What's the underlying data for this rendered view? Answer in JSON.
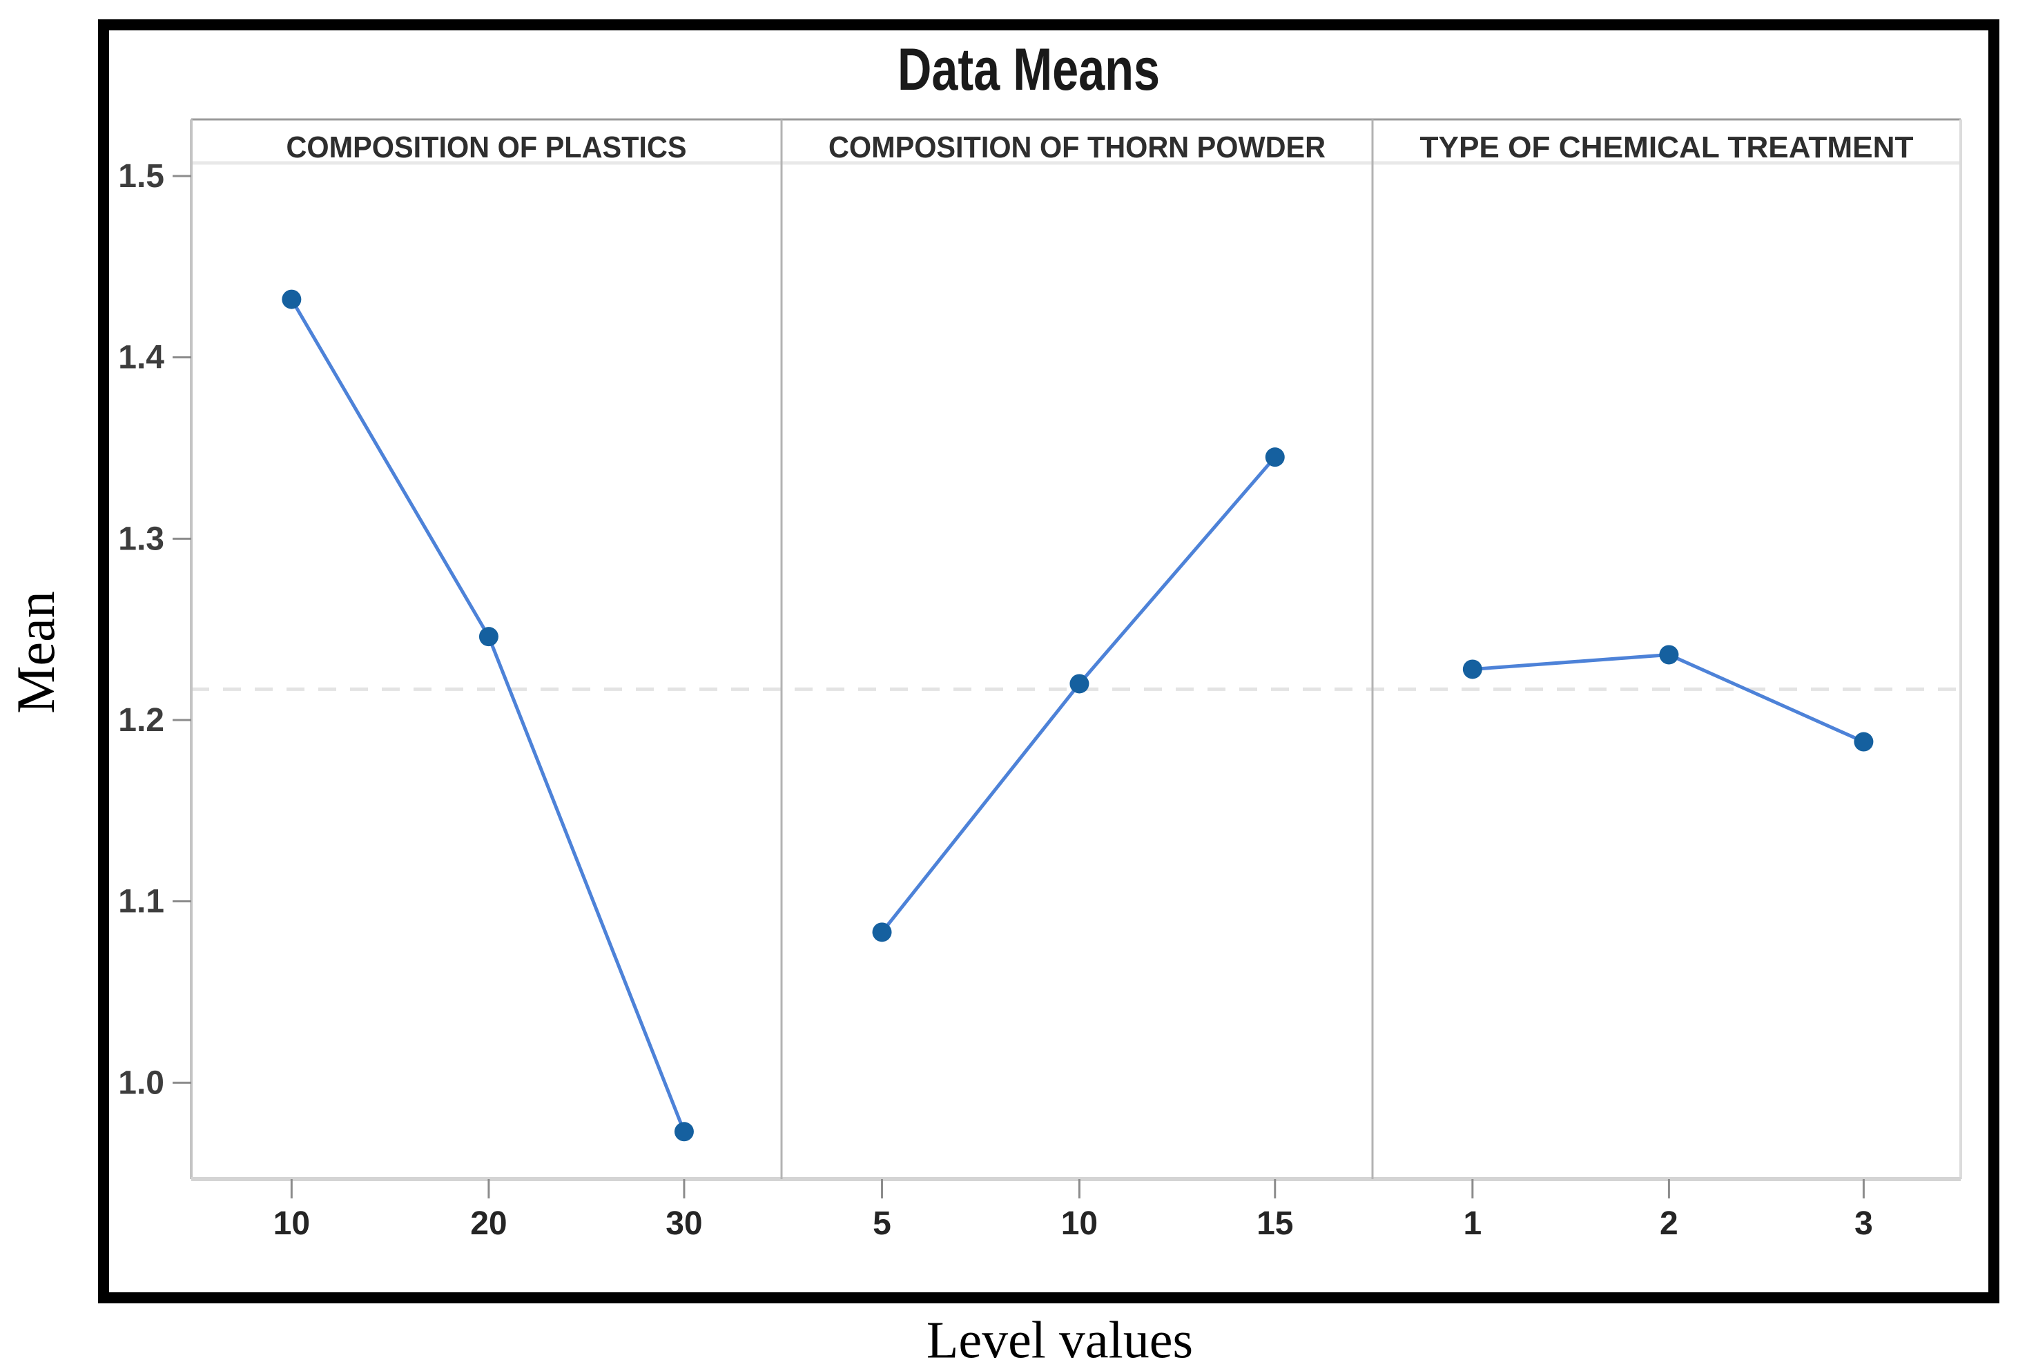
{
  "figure": {
    "title": "Data Means",
    "ylabel": "Mean",
    "xlabel": "Level values"
  },
  "chart_data": {
    "type": "line",
    "title": "Data Means",
    "xlabel": "Level values",
    "ylabel": "Mean",
    "ylim": [
      0.947,
      1.507
    ],
    "yticks": [
      "1.0",
      "1.1",
      "1.2",
      "1.3",
      "1.4",
      "1.5"
    ],
    "grid": false,
    "legend": "none",
    "reference_line": {
      "value": 1.217,
      "style": "dashed",
      "meaning": "grand mean"
    },
    "panels": [
      {
        "title": "COMPOSITION OF PLASTICS",
        "categories": [
          "10",
          "20",
          "30"
        ],
        "values": [
          1.432,
          1.246,
          0.973
        ]
      },
      {
        "title": "COMPOSITION OF THORN POWDER",
        "categories": [
          "5",
          "10",
          "15"
        ],
        "values": [
          1.083,
          1.22,
          1.345
        ]
      },
      {
        "title": "TYPE OF CHEMICAL TREATMENT",
        "categories": [
          "1",
          "2",
          "3"
        ],
        "values": [
          1.228,
          1.236,
          1.188
        ]
      }
    ],
    "colors": {
      "line": "#4d82d8",
      "marker": "#15609f",
      "reference": "#e3e3e3",
      "panel_border": "#b3b3b3",
      "axis": "#c4c4c4",
      "tick": "#8c8c8c",
      "tick_label": "#3d3d3d",
      "panel_title": "#2e2e2e",
      "title": "#1a1a1a"
    }
  }
}
